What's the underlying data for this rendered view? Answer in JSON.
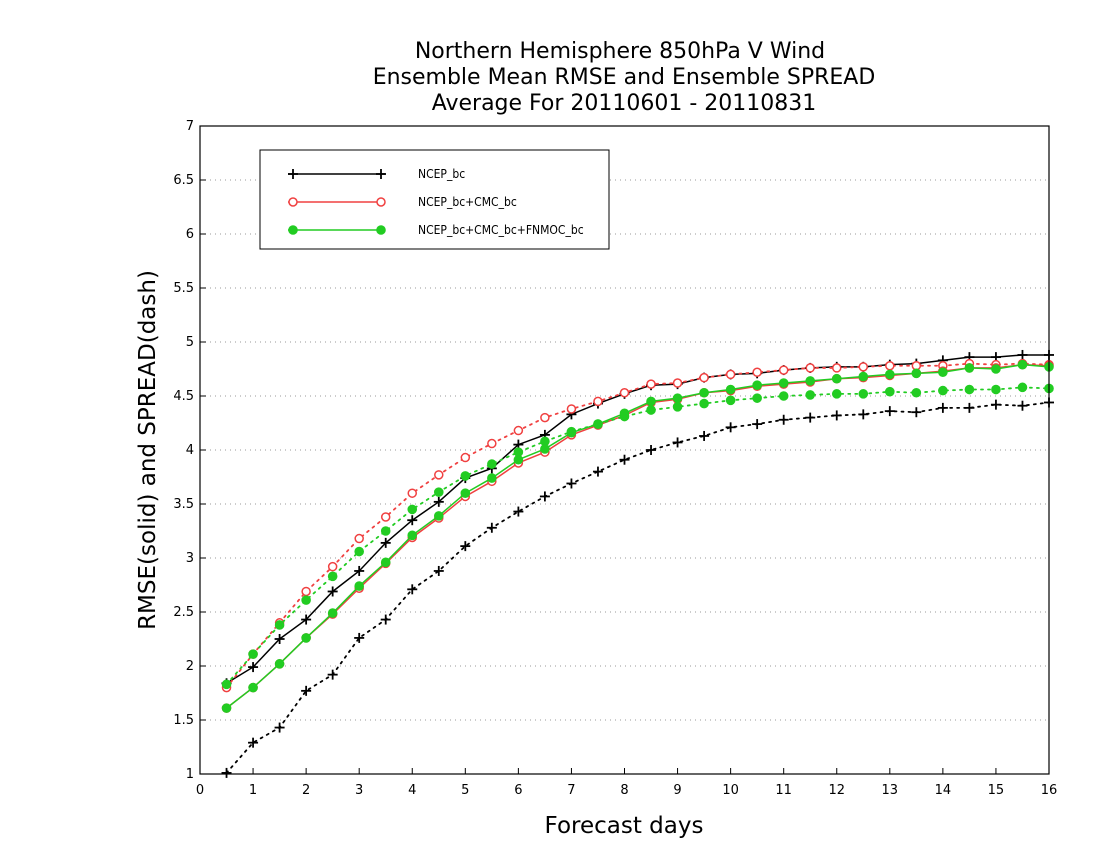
{
  "chart_data": {
    "type": "line",
    "title": [
      "Northern Hemisphere 850hPa V Wind",
      "Ensemble Mean RMSE and Ensemble SPREAD",
      "Average For 20110601 - 20110831"
    ],
    "xlabel": "Forecast days",
    "ylabel": "RMSE(solid) and SPREAD(dash)",
    "xlim": [
      0,
      16
    ],
    "ylim": [
      1,
      7
    ],
    "xticks": [
      0,
      1,
      2,
      3,
      4,
      5,
      6,
      7,
      8,
      9,
      10,
      11,
      12,
      13,
      14,
      15,
      16
    ],
    "yticks": [
      1,
      1.5,
      2,
      2.5,
      3,
      3.5,
      4,
      4.5,
      5,
      5.5,
      6,
      6.5,
      7
    ],
    "grid": "horizontal dotted",
    "legend_position": "top-left",
    "x": [
      0.5,
      1,
      1.5,
      2,
      2.5,
      3,
      3.5,
      4,
      4.5,
      5,
      5.5,
      6,
      6.5,
      7,
      7.5,
      8,
      8.5,
      9,
      9.5,
      10,
      10.5,
      11,
      11.5,
      12,
      12.5,
      13,
      13.5,
      14,
      14.5,
      15,
      15.5,
      16
    ],
    "series": [
      {
        "name": "NCEP_bc",
        "color": "#000000",
        "marker": "plus",
        "rmse": [
          1.84,
          1.99,
          2.25,
          2.43,
          2.69,
          2.88,
          3.14,
          3.35,
          3.52,
          3.74,
          3.83,
          4.05,
          4.14,
          4.33,
          4.43,
          4.52,
          4.6,
          4.61,
          4.67,
          4.7,
          4.71,
          4.74,
          4.76,
          4.77,
          4.77,
          4.79,
          4.8,
          4.83,
          4.86,
          4.86,
          4.88,
          4.88
        ],
        "spread": [
          1.01,
          1.29,
          1.43,
          1.77,
          1.92,
          2.26,
          2.43,
          2.71,
          2.88,
          3.11,
          3.28,
          3.43,
          3.57,
          3.69,
          3.8,
          3.91,
          4.0,
          4.07,
          4.13,
          4.21,
          4.24,
          4.28,
          4.3,
          4.32,
          4.33,
          4.36,
          4.35,
          4.39,
          4.39,
          4.42,
          4.41,
          4.44
        ]
      },
      {
        "name": "NCEP_bc+CMC_bc",
        "color": "#f04040",
        "marker": "open-circle",
        "rmse": [
          1.61,
          1.8,
          2.02,
          2.26,
          2.48,
          2.72,
          2.95,
          3.19,
          3.37,
          3.57,
          3.71,
          3.88,
          3.98,
          4.14,
          4.23,
          4.32,
          4.44,
          4.47,
          4.53,
          4.55,
          4.59,
          4.61,
          4.63,
          4.66,
          4.67,
          4.69,
          4.71,
          4.73,
          4.76,
          4.76,
          4.79,
          4.78
        ],
        "spread": [
          1.8,
          2.11,
          2.4,
          2.69,
          2.92,
          3.18,
          3.38,
          3.6,
          3.77,
          3.93,
          4.06,
          4.18,
          4.3,
          4.38,
          4.45,
          4.53,
          4.61,
          4.62,
          4.67,
          4.7,
          4.72,
          4.74,
          4.76,
          4.76,
          4.77,
          4.78,
          4.78,
          4.78,
          4.8,
          4.79,
          4.8,
          4.79
        ]
      },
      {
        "name": "NCEP_bc+CMC_bc+FNMOC_bc",
        "color": "#22cc22",
        "marker": "filled-circle",
        "rmse": [
          1.61,
          1.8,
          2.02,
          2.26,
          2.49,
          2.74,
          2.96,
          3.21,
          3.39,
          3.6,
          3.74,
          3.91,
          4.01,
          4.16,
          4.24,
          4.34,
          4.45,
          4.48,
          4.53,
          4.56,
          4.6,
          4.62,
          4.64,
          4.66,
          4.68,
          4.7,
          4.71,
          4.72,
          4.76,
          4.75,
          4.79,
          4.77
        ],
        "spread": [
          1.83,
          2.11,
          2.38,
          2.61,
          2.83,
          3.06,
          3.25,
          3.45,
          3.61,
          3.76,
          3.87,
          3.98,
          4.08,
          4.17,
          4.24,
          4.31,
          4.37,
          4.4,
          4.43,
          4.46,
          4.48,
          4.5,
          4.51,
          4.52,
          4.52,
          4.54,
          4.53,
          4.55,
          4.56,
          4.56,
          4.58,
          4.57
        ]
      }
    ]
  }
}
